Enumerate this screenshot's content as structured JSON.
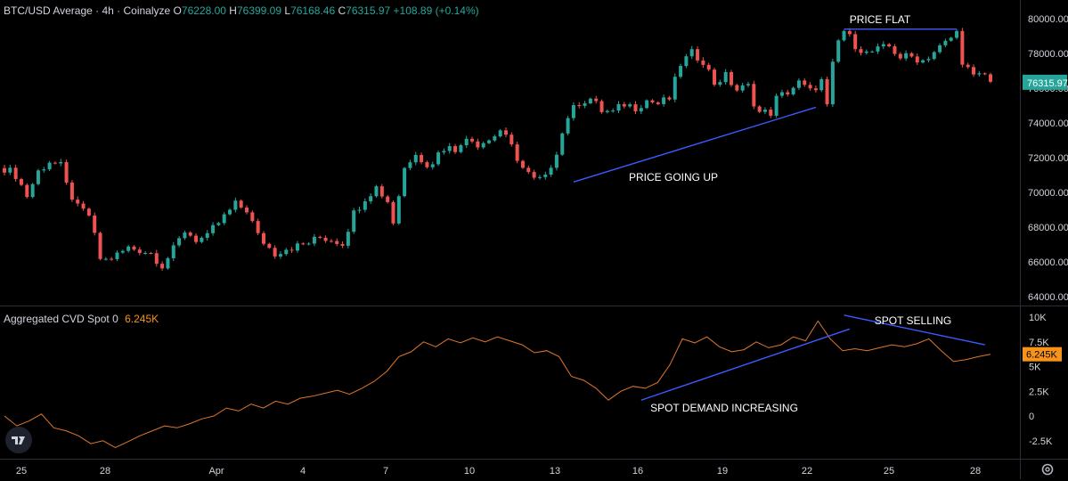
{
  "header": {
    "title": "BTC/USD Average · 4h · Coinalyze",
    "open_label": "O",
    "open": "76228.00",
    "high_label": "H",
    "high": "76399.09",
    "low_label": "L",
    "low": "76168.46",
    "close_label": "C",
    "close": "76315.97",
    "change": "+108.89 (+0.14%)"
  },
  "indicator": {
    "title": "Aggregated CVD Spot 0",
    "value": "6.245K"
  },
  "colors": {
    "up": "#26a69a",
    "down": "#ef5350",
    "cvd": "#e0762c",
    "trendline": "#3d5afe",
    "background": "#000000",
    "text": "#d1d4dc",
    "cvd_badge": "#f7931a",
    "price_badge": "#26a69a"
  },
  "icons": {
    "logo": "tradingview-logo-icon",
    "settings": "gear-icon"
  },
  "chart_data": [
    {
      "type": "candlestick",
      "title": "BTC/USD Average · 4h · Coinalyze",
      "x_tick_labels": [
        "25",
        "28",
        "Apr",
        "4",
        "7",
        "10",
        "13",
        "16",
        "19",
        "22",
        "25",
        "28"
      ],
      "y_tick_labels": [
        "64000.00",
        "66000.00",
        "68000.00",
        "70000.00",
        "72000.00",
        "74000.00",
        "76000.00",
        "78000.00",
        "80000.00"
      ],
      "ylim": [
        63500,
        80500
      ],
      "last_price_label": "76315.97",
      "close_path": [
        [
          0,
          71400
        ],
        [
          2,
          71000
        ],
        [
          4,
          69800
        ],
        [
          6,
          71200
        ],
        [
          8,
          71800
        ],
        [
          10,
          71500
        ],
        [
          11,
          70400
        ],
        [
          13,
          69100
        ],
        [
          15,
          68700
        ],
        [
          17,
          66200
        ],
        [
          18,
          66100
        ],
        [
          20,
          66400
        ],
        [
          22,
          66800
        ],
        [
          24,
          66700
        ],
        [
          26,
          66500
        ],
        [
          28,
          65800
        ],
        [
          30,
          66700
        ],
        [
          32,
          67800
        ],
        [
          34,
          67300
        ],
        [
          36,
          67400
        ],
        [
          37,
          67900
        ],
        [
          39,
          68600
        ],
        [
          41,
          69300
        ],
        [
          43,
          69000
        ],
        [
          45,
          67500
        ],
        [
          47,
          66800
        ],
        [
          48,
          66500
        ],
        [
          50,
          66800
        ],
        [
          52,
          66900
        ],
        [
          54,
          67100
        ],
        [
          56,
          67400
        ],
        [
          58,
          67300
        ],
        [
          60,
          67100
        ],
        [
          62,
          68800
        ],
        [
          64,
          69700
        ],
        [
          66,
          70300
        ],
        [
          68,
          69500
        ],
        [
          69,
          68300
        ],
        [
          71,
          71400
        ],
        [
          73,
          72400
        ],
        [
          75,
          71400
        ],
        [
          77,
          72200
        ],
        [
          79,
          72900
        ],
        [
          80,
          72200
        ],
        [
          82,
          73300
        ],
        [
          84,
          72800
        ],
        [
          86,
          73000
        ],
        [
          88,
          73600
        ],
        [
          90,
          72600
        ],
        [
          92,
          71400
        ],
        [
          94,
          70700
        ],
        [
          96,
          70800
        ],
        [
          98,
          72400
        ],
        [
          100,
          74400
        ],
        [
          102,
          75200
        ],
        [
          104,
          75400
        ],
        [
          106,
          74700
        ],
        [
          108,
          74600
        ],
        [
          110,
          75100
        ],
        [
          112,
          74900
        ],
        [
          114,
          75300
        ],
        [
          116,
          75100
        ],
        [
          118,
          75400
        ],
        [
          120,
          77400
        ],
        [
          122,
          78000
        ],
        [
          124,
          77600
        ],
        [
          126,
          76300
        ],
        [
          128,
          76700
        ],
        [
          130,
          75900
        ],
        [
          132,
          76100
        ],
        [
          133,
          75200
        ],
        [
          134,
          74600
        ],
        [
          136,
          74600
        ],
        [
          137,
          75400
        ],
        [
          139,
          75800
        ],
        [
          141,
          76300
        ],
        [
          143,
          75800
        ],
        [
          145,
          76400
        ],
        [
          146,
          74900
        ],
        [
          147,
          77300
        ],
        [
          148,
          78700
        ],
        [
          149,
          79300
        ],
        [
          151,
          78500
        ],
        [
          153,
          78000
        ],
        [
          155,
          78200
        ],
        [
          157,
          78400
        ],
        [
          159,
          77800
        ],
        [
          161,
          77800
        ],
        [
          163,
          77600
        ],
        [
          165,
          78100
        ],
        [
          167,
          78600
        ],
        [
          169,
          79200
        ],
        [
          170,
          77600
        ],
        [
          172,
          76600
        ],
        [
          174,
          76800
        ],
        [
          175,
          76300
        ]
      ],
      "visible_x_range": [
        0,
        175
      ],
      "annotations": [
        {
          "text": "PRICE FLAT",
          "from": [
            149,
            79400
          ],
          "to": [
            169,
            79400
          ]
        },
        {
          "text": "PRICE GOING UP",
          "from": [
            101,
            70600
          ],
          "to": [
            144,
            74900
          ]
        }
      ]
    },
    {
      "type": "line",
      "title": "Aggregated CVD Spot 0",
      "series": [
        {
          "name": "Aggregated CVD Spot 0",
          "values": [
            0.0,
            -1.0,
            -0.5,
            0.2,
            -1.2,
            -1.5,
            -2.0,
            -2.8,
            -2.5,
            -3.2,
            -2.6,
            -2.0,
            -1.5,
            -1.0,
            -1.2,
            -0.8,
            -0.3,
            0.0,
            0.8,
            0.5,
            1.2,
            0.8,
            1.5,
            1.2,
            1.8,
            2.0,
            2.3,
            2.6,
            2.2,
            2.8,
            3.5,
            4.5,
            6.0,
            6.5,
            7.5,
            7.0,
            7.8,
            7.4,
            7.9,
            7.5,
            8.0,
            7.6,
            7.2,
            6.4,
            6.6,
            6.0,
            4.0,
            3.6,
            2.8,
            1.6,
            2.5,
            3.0,
            2.8,
            3.4,
            5.2,
            7.8,
            7.4,
            8.0,
            7.0,
            6.5,
            6.7,
            7.5,
            6.9,
            7.2,
            8.0,
            7.6,
            9.6,
            7.8,
            6.6,
            6.8,
            6.6,
            6.9,
            7.2,
            7.0,
            7.3,
            7.8,
            6.6,
            5.5,
            5.7,
            6.0,
            6.24
          ]
        }
      ],
      "y_tick_labels": [
        "-2.5K",
        "0",
        "2.5K",
        "5K",
        "7.5K",
        "10K"
      ],
      "ylim": [
        -4,
        10.5
      ],
      "last_value_label": "6.245K",
      "annotations": [
        {
          "text": "SPOT SELLING",
          "from": [
            149,
            10.2
          ],
          "to": [
            174,
            7.2
          ]
        },
        {
          "text": "SPOT DEMAND INCREASING",
          "from": [
            113,
            1.6
          ],
          "to": [
            150,
            8.8
          ]
        }
      ]
    }
  ]
}
